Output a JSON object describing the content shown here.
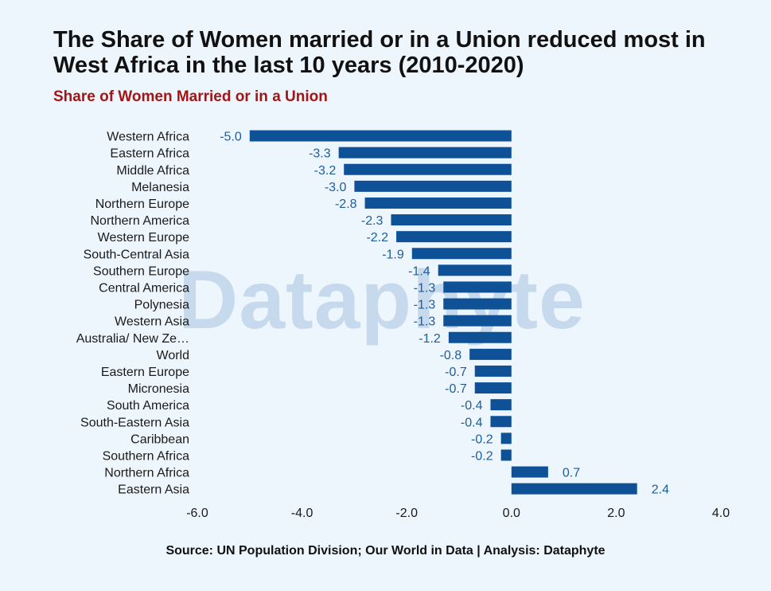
{
  "header": {
    "title": "The Share of Women married or in a Union reduced most in West Africa in the last 10 years (2010-2020)",
    "subtitle": "Share of Women Married or in a Union"
  },
  "watermark": "Dataphyte",
  "footer": {
    "source": "Source: UN Population Division; Our World in Data | Analysis: Dataphyte"
  },
  "colors": {
    "bar": "#0f5196",
    "value_label": "#1e5d9c",
    "category_label": "#1a1a1a",
    "title": "#111111",
    "subtitle": "#a31515",
    "background": "#eef6fd"
  },
  "chart_data": {
    "type": "bar",
    "orientation": "horizontal",
    "title": "The Share of Women married or in a Union reduced most in West Africa in the last 10 years (2010-2020)",
    "subtitle": "Share of Women Married or in a Union",
    "xlabel": "",
    "ylabel": "",
    "xlim": [
      -6,
      4
    ],
    "xticks": [
      "-6.0",
      "-4.0",
      "-2.0",
      "0.0",
      "2.0",
      "4.0"
    ],
    "grid": false,
    "legend": "none",
    "categories": [
      "Western Africa",
      "Eastern Africa",
      "Middle Africa",
      "Melanesia",
      "Northern Europe",
      "Northern America",
      "Western Europe",
      "South-Central Asia",
      "Southern Europe",
      "Central America",
      "Polynesia",
      "Western Asia",
      "Australia/ New Ze…",
      "World",
      "Eastern Europe",
      "Micronesia",
      "South America",
      "South-Eastern Asia",
      "Caribbean",
      "Southern Africa",
      "Northern Africa",
      "Eastern Asia"
    ],
    "values": [
      -5.0,
      -3.3,
      -3.2,
      -3.0,
      -2.8,
      -2.3,
      -2.2,
      -1.9,
      -1.4,
      -1.3,
      -1.3,
      -1.3,
      -1.2,
      -0.8,
      -0.7,
      -0.7,
      -0.4,
      -0.4,
      -0.2,
      -0.2,
      0.7,
      2.4
    ],
    "value_labels": [
      "-5.0",
      "-3.3",
      "-3.2",
      "-3.0",
      "-2.8",
      "-2.3",
      "-2.2",
      "-1.9",
      "-1.4",
      "-1.3",
      "-1.3",
      "-1.3",
      "-1.2",
      "-0.8",
      "-0.7",
      "-0.7",
      "-0.4",
      "-0.4",
      "-0.2",
      "-0.2",
      "0.7",
      "2.4"
    ]
  }
}
